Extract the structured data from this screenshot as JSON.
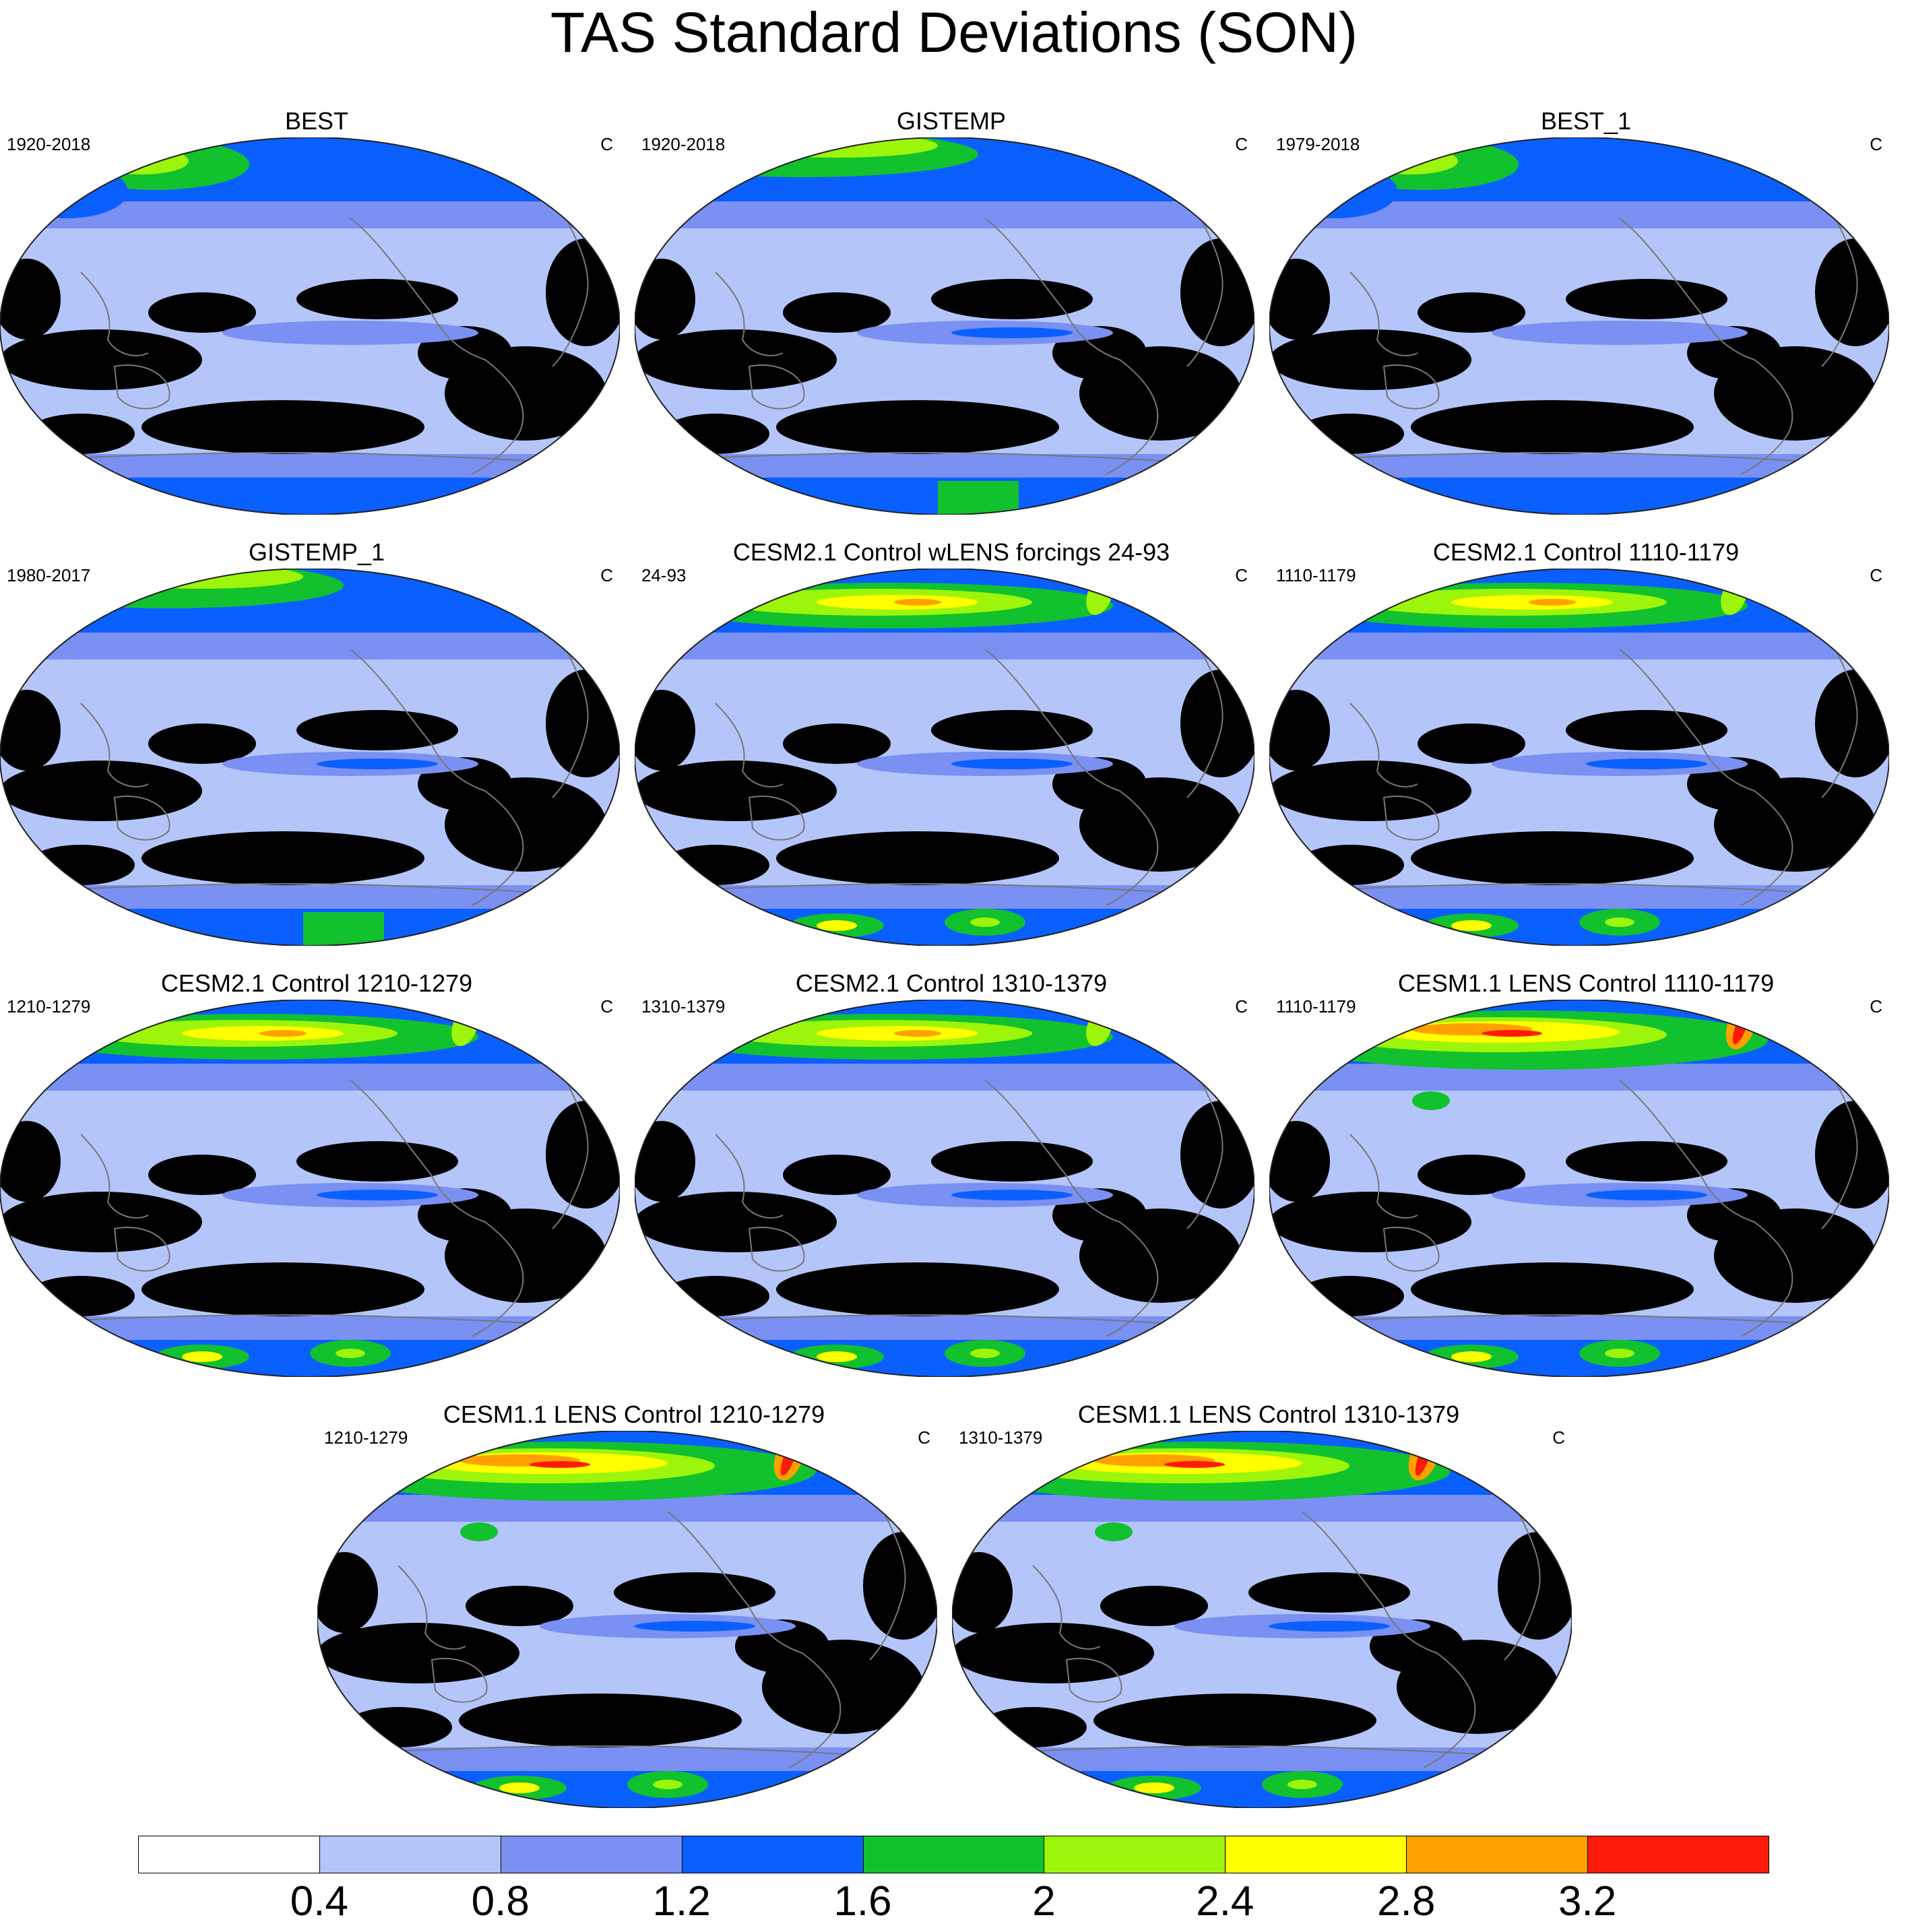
{
  "figure": {
    "title": "TAS Standard Deviations (SON)"
  },
  "panels": [
    {
      "title": "BEST",
      "period": "1920-2018",
      "units": "C",
      "style": "obs_best"
    },
    {
      "title": "GISTEMP",
      "period": "1920-2018",
      "units": "C",
      "style": "obs_gis"
    },
    {
      "title": "BEST_1",
      "period": "1979-2018",
      "units": "C",
      "style": "obs_best"
    },
    {
      "title": "GISTEMP_1",
      "period": "1980-2017",
      "units": "C",
      "style": "obs_gis"
    },
    {
      "title": "CESM2.1 Control wLENS forcings 24-93",
      "period": "24-93",
      "units": "C",
      "style": "cesm2"
    },
    {
      "title": "CESM2.1 Control 1110-1179",
      "period": "1110-1179",
      "units": "C",
      "style": "cesm2"
    },
    {
      "title": "CESM2.1 Control 1210-1279",
      "period": "1210-1279",
      "units": "C",
      "style": "cesm2"
    },
    {
      "title": "CESM2.1 Control 1310-1379",
      "period": "1310-1379",
      "units": "C",
      "style": "cesm2"
    },
    {
      "title": "CESM1.1 LENS Control 1110-1179",
      "period": "1110-1179",
      "units": "C",
      "style": "cesm1"
    },
    {
      "title": "CESM1.1 LENS Control 1210-1279",
      "period": "1210-1279",
      "units": "C",
      "style": "cesm1"
    },
    {
      "title": "CESM1.1 LENS Control 1310-1379",
      "period": "1310-1379",
      "units": "C",
      "style": "cesm1"
    }
  ],
  "colorbar": {
    "colors": [
      "#ffffff",
      "#b4c5f9",
      "#7a90f2",
      "#0a5fff",
      "#12c12e",
      "#9cf50a",
      "#ffff00",
      "#ffa000",
      "#ff1a0a"
    ],
    "labels": [
      "0.4",
      "0.8",
      "1.2",
      "1.6",
      "2",
      "2.4",
      "2.8",
      "3.2"
    ]
  }
}
